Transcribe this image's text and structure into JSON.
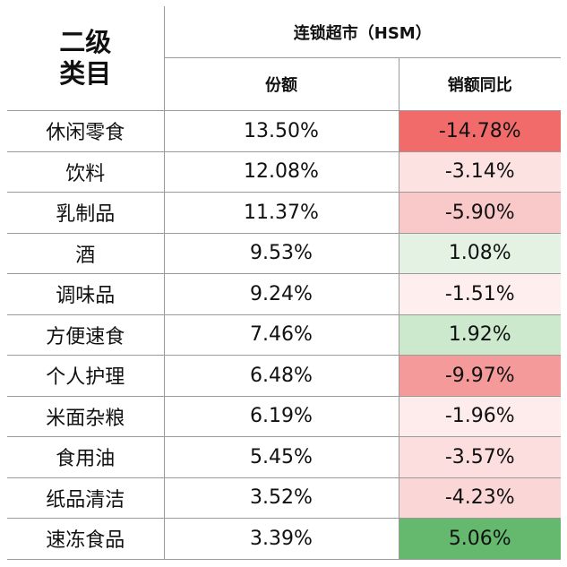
{
  "table": {
    "category_header": [
      "二级",
      "类目"
    ],
    "group_header": "连锁超市（HSM）",
    "share_header": "份额",
    "yoy_header": "销额同比",
    "rows": [
      {
        "category": "休闲零食",
        "share": "13.50%",
        "yoy": "-14.78%",
        "color": "#f26b6b"
      },
      {
        "category": "饮料",
        "share": "12.08%",
        "yoy": "-3.14%",
        "color": "#fde2e2"
      },
      {
        "category": "乳制品",
        "share": "11.37%",
        "yoy": "-5.90%",
        "color": "#f9c8c8"
      },
      {
        "category": "酒",
        "share": "9.53%",
        "yoy": "1.08%",
        "color": "#e3f2e3"
      },
      {
        "category": "调味品",
        "share": "9.24%",
        "yoy": "-1.51%",
        "color": "#feeeee"
      },
      {
        "category": "方便速食",
        "share": "7.46%",
        "yoy": "1.92%",
        "color": "#cce8cd"
      },
      {
        "category": "个人护理",
        "share": "6.48%",
        "yoy": "-9.97%",
        "color": "#f49a9a"
      },
      {
        "category": "米面杂粮",
        "share": "6.19%",
        "yoy": "-1.96%",
        "color": "#feebeb"
      },
      {
        "category": "食用油",
        "share": "5.45%",
        "yoy": "-3.57%",
        "color": "#fcdede"
      },
      {
        "category": "纸品清洁",
        "share": "3.52%",
        "yoy": "-4.23%",
        "color": "#fbd6d6"
      },
      {
        "category": "速冻食品",
        "share": "3.39%",
        "yoy": "5.06%",
        "color": "#64b96e"
      }
    ]
  }
}
